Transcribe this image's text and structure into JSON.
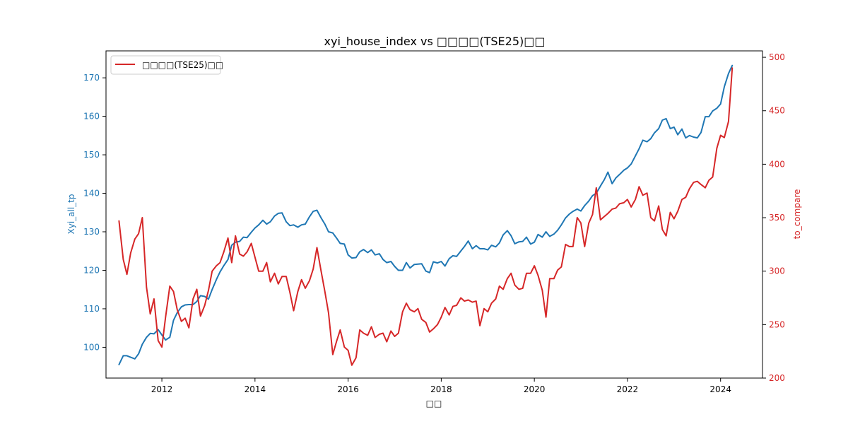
{
  "chart_data": {
    "type": "line",
    "title": "xyi_house_index vs □□□□(TSE25)□□",
    "xlabel": "□□",
    "ylabel_left": "Xyi_all_tp",
    "ylabel_right": "to_compare",
    "x_range": [
      2010.8,
      2024.9
    ],
    "y_left_range": [
      92,
      177
    ],
    "y_right_range": [
      200,
      506
    ],
    "x_ticks": [
      2012,
      2014,
      2016,
      2018,
      2020,
      2022,
      2024
    ],
    "y_left_ticks": [
      100,
      110,
      120,
      130,
      140,
      150,
      160,
      170
    ],
    "y_right_ticks": [
      200,
      250,
      300,
      350,
      400,
      450,
      500
    ],
    "grid": false,
    "legend_position": "upper-left",
    "legend_entries": [
      "□□□□(TSE25)□□"
    ],
    "colors": {
      "left": "#1f77b4",
      "right": "#d62728"
    },
    "series": [
      {
        "name": "Xyi_all_tp",
        "axis": "left",
        "x": [
          2011.08,
          2011.17,
          2011.25,
          2011.33,
          2011.42,
          2011.5,
          2011.58,
          2011.67,
          2011.75,
          2011.83,
          2011.92,
          2012.0,
          2012.08,
          2012.17,
          2012.25,
          2012.33,
          2012.42,
          2012.5,
          2012.58,
          2012.67,
          2012.75,
          2012.83,
          2012.92,
          2013.0,
          2013.08,
          2013.17,
          2013.25,
          2013.33,
          2013.42,
          2013.5,
          2013.58,
          2013.67,
          2013.75,
          2013.83,
          2013.92,
          2014.0,
          2014.08,
          2014.17,
          2014.25,
          2014.33,
          2014.42,
          2014.5,
          2014.58,
          2014.67,
          2014.75,
          2014.83,
          2014.92,
          2015.0,
          2015.08,
          2015.17,
          2015.25,
          2015.33,
          2015.42,
          2015.5,
          2015.58,
          2015.67,
          2015.75,
          2015.83,
          2015.92,
          2016.0,
          2016.08,
          2016.17,
          2016.25,
          2016.33,
          2016.42,
          2016.5,
          2016.58,
          2016.67,
          2016.75,
          2016.83,
          2016.92,
          2017.0,
          2017.08,
          2017.17,
          2017.25,
          2017.33,
          2017.42,
          2017.5,
          2017.58,
          2017.67,
          2017.75,
          2017.83,
          2017.92,
          2018.0,
          2018.08,
          2018.17,
          2018.25,
          2018.33,
          2018.42,
          2018.5,
          2018.58,
          2018.67,
          2018.75,
          2018.83,
          2018.92,
          2019.0,
          2019.08,
          2019.17,
          2019.25,
          2019.33,
          2019.42,
          2019.5,
          2019.58,
          2019.67,
          2019.75,
          2019.83,
          2019.92,
          2020.0,
          2020.08,
          2020.17,
          2020.25,
          2020.33,
          2020.42,
          2020.5,
          2020.58,
          2020.67,
          2020.75,
          2020.83,
          2020.92,
          2021.0,
          2021.08,
          2021.17,
          2021.25,
          2021.33,
          2021.42,
          2021.5,
          2021.58,
          2021.67,
          2021.75,
          2021.83,
          2021.92,
          2022.0,
          2022.08,
          2022.17,
          2022.25,
          2022.33,
          2022.42,
          2022.5,
          2022.58,
          2022.67,
          2022.75,
          2022.83,
          2022.92,
          2023.0,
          2023.08,
          2023.17,
          2023.25,
          2023.33,
          2023.42,
          2023.5,
          2023.58,
          2023.67,
          2023.75,
          2023.83,
          2023.92,
          2024.0,
          2024.08,
          2024.17,
          2024.25
        ],
        "values": [
          95.5,
          97.8,
          97.8,
          97.4,
          97.0,
          98.3,
          100.8,
          102.6,
          103.6,
          103.5,
          104.6,
          103.2,
          101.9,
          102.6,
          107.0,
          109.0,
          110.5,
          111.0,
          111.1,
          111.1,
          111.9,
          113.4,
          113.2,
          112.5,
          115.0,
          117.6,
          119.6,
          121.2,
          122.8,
          126.5,
          127.3,
          127.5,
          128.6,
          128.5,
          129.9,
          131.0,
          131.8,
          133.0,
          132.0,
          132.6,
          134.1,
          134.8,
          134.9,
          132.6,
          131.6,
          131.8,
          131.2,
          131.8,
          132.0,
          133.9,
          135.3,
          135.6,
          133.6,
          132.0,
          130.0,
          129.7,
          128.4,
          127.0,
          126.8,
          124.0,
          123.2,
          123.3,
          124.8,
          125.4,
          124.6,
          125.3,
          124.0,
          124.3,
          122.8,
          122.0,
          122.3,
          121.0,
          120.0,
          120.0,
          122.0,
          120.6,
          121.5,
          121.6,
          121.7,
          119.8,
          119.4,
          122.2,
          121.9,
          122.3,
          121.1,
          123.0,
          123.8,
          123.6,
          125.0,
          126.2,
          127.6,
          125.6,
          126.4,
          125.6,
          125.6,
          125.3,
          126.5,
          126.1,
          127.1,
          129.2,
          130.3,
          129.0,
          126.9,
          127.4,
          127.5,
          128.6,
          126.8,
          127.3,
          129.3,
          128.6,
          130.0,
          128.8,
          129.4,
          130.4,
          131.8,
          133.6,
          134.6,
          135.3,
          135.9,
          135.4,
          136.8,
          138.0,
          139.4,
          140.0,
          141.9,
          143.5,
          145.5,
          142.5,
          144.0,
          144.9,
          146.0,
          146.6,
          147.6,
          149.7,
          151.6,
          153.8,
          153.4,
          154.2,
          155.7,
          156.8,
          159.0,
          159.4,
          156.8,
          157.2,
          155.2,
          156.7,
          154.4,
          155.0,
          154.6,
          154.4,
          155.8,
          159.9,
          159.9,
          161.4,
          162.1,
          163.2,
          167.7,
          171.1,
          173.2
        ]
      },
      {
        "name": "□□□□(TSE25)□□",
        "axis": "right",
        "x": [
          2011.08,
          2011.17,
          2011.25,
          2011.33,
          2011.42,
          2011.5,
          2011.58,
          2011.67,
          2011.75,
          2011.83,
          2011.92,
          2012.0,
          2012.08,
          2012.17,
          2012.25,
          2012.33,
          2012.42,
          2012.5,
          2012.58,
          2012.67,
          2012.75,
          2012.83,
          2012.92,
          2013.0,
          2013.08,
          2013.17,
          2013.25,
          2013.33,
          2013.42,
          2013.5,
          2013.58,
          2013.67,
          2013.75,
          2013.83,
          2013.92,
          2014.0,
          2014.08,
          2014.17,
          2014.25,
          2014.33,
          2014.42,
          2014.5,
          2014.58,
          2014.67,
          2014.75,
          2014.83,
          2014.92,
          2015.0,
          2015.08,
          2015.17,
          2015.25,
          2015.33,
          2015.42,
          2015.5,
          2015.58,
          2015.67,
          2015.75,
          2015.83,
          2015.92,
          2016.0,
          2016.08,
          2016.17,
          2016.25,
          2016.33,
          2016.42,
          2016.5,
          2016.58,
          2016.67,
          2016.75,
          2016.83,
          2016.92,
          2017.0,
          2017.08,
          2017.17,
          2017.25,
          2017.33,
          2017.42,
          2017.5,
          2017.58,
          2017.67,
          2017.75,
          2017.83,
          2017.92,
          2018.0,
          2018.08,
          2018.17,
          2018.25,
          2018.33,
          2018.42,
          2018.5,
          2018.58,
          2018.67,
          2018.75,
          2018.83,
          2018.92,
          2019.0,
          2019.08,
          2019.17,
          2019.25,
          2019.33,
          2019.42,
          2019.5,
          2019.58,
          2019.67,
          2019.75,
          2019.83,
          2019.92,
          2020.0,
          2020.08,
          2020.17,
          2020.25,
          2020.33,
          2020.42,
          2020.5,
          2020.58,
          2020.67,
          2020.75,
          2020.83,
          2020.92,
          2021.0,
          2021.08,
          2021.17,
          2021.25,
          2021.33,
          2021.42,
          2021.5,
          2021.58,
          2021.67,
          2021.75,
          2021.83,
          2021.92,
          2022.0,
          2022.08,
          2022.17,
          2022.25,
          2022.33,
          2022.42,
          2022.5,
          2022.58,
          2022.67,
          2022.75,
          2022.83,
          2022.92,
          2023.0,
          2023.08,
          2023.17,
          2023.25,
          2023.33,
          2023.42,
          2023.5,
          2023.58,
          2023.67,
          2023.75,
          2023.83,
          2023.92,
          2024.0,
          2024.08,
          2024.17,
          2024.25
        ],
        "values": [
          347,
          311,
          297,
          317,
          330,
          335,
          350,
          285,
          260,
          274,
          235,
          229,
          257,
          286,
          281,
          264,
          253,
          256,
          247,
          274,
          283,
          258,
          268,
          282,
          300,
          305,
          308,
          318,
          331,
          308,
          333,
          316,
          314,
          318,
          326,
          313,
          300,
          300,
          308,
          290,
          298,
          288,
          295,
          295,
          280,
          263,
          281,
          292,
          284,
          291,
          302,
          322,
          300,
          281,
          261,
          222,
          234,
          245,
          229,
          226,
          212,
          219,
          245,
          242,
          240,
          248,
          238,
          241,
          242,
          234,
          244,
          239,
          242,
          262,
          270,
          264,
          262,
          265,
          255,
          252,
          243,
          246,
          250,
          257,
          266,
          259,
          267,
          268,
          275,
          272,
          273,
          271,
          272,
          249,
          265,
          262,
          270,
          274,
          286,
          283,
          293,
          298,
          287,
          283,
          284,
          298,
          298,
          305,
          296,
          282,
          257,
          293,
          293,
          301,
          304,
          325,
          323,
          323,
          350,
          345,
          323,
          345,
          353,
          378,
          348,
          351,
          354,
          358,
          359,
          363,
          364,
          367,
          360,
          367,
          379,
          371,
          373,
          350,
          347,
          361,
          339,
          333,
          355,
          349,
          356,
          367,
          369,
          377,
          383,
          384,
          381,
          378,
          385,
          388,
          415,
          427,
          425,
          440,
          490
        ]
      }
    ]
  }
}
